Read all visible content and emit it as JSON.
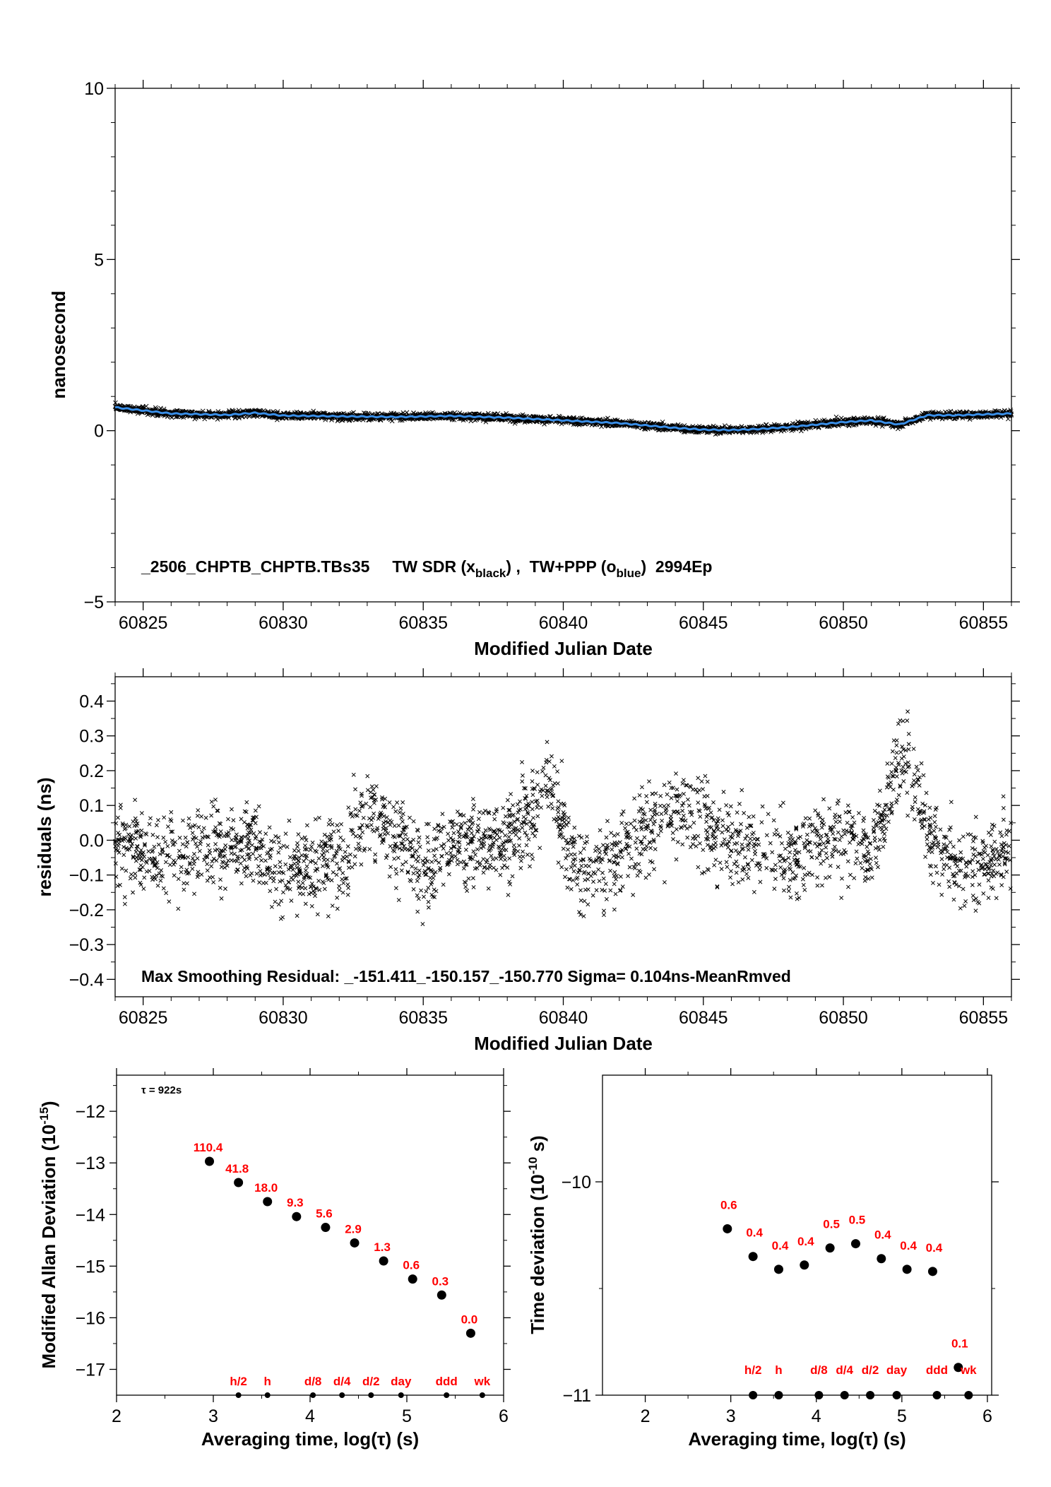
{
  "chart_data": [
    {
      "type": "scatter",
      "ylabel": "nanosecond",
      "xlabel": "Modified Julian Date",
      "xlim": [
        60824,
        60856
      ],
      "ylim": [
        -5,
        10
      ],
      "xticks": [
        "60825",
        "60830",
        "60835",
        "60840",
        "60845",
        "60850",
        "60855"
      ],
      "yticks": [
        "−5",
        "0",
        "5",
        "10"
      ],
      "annotation": {
        "prefix": "_2506_CHPTB_CHPTB.TBs35     TW SDR (x",
        "sub1": "black",
        "mid": ") ,  TW+PPP (o",
        "sub2": "blue",
        "suffix": ")  2994Ep"
      },
      "series": [
        {
          "marker": "x",
          "color": "#000000",
          "trend": [
            [
              60824,
              0.68
            ],
            [
              60826,
              0.5
            ],
            [
              60828,
              0.46
            ],
            [
              60829,
              0.52
            ],
            [
              60830,
              0.44
            ],
            [
              60832,
              0.42
            ],
            [
              60834,
              0.4
            ],
            [
              60836,
              0.43
            ],
            [
              60838,
              0.38
            ],
            [
              60840,
              0.3
            ],
            [
              60842,
              0.22
            ],
            [
              60844,
              0.08
            ],
            [
              60845,
              0.03
            ],
            [
              60846,
              0.02
            ],
            [
              60847,
              0.05
            ],
            [
              60848,
              0.1
            ],
            [
              60850,
              0.25
            ],
            [
              60851,
              0.3
            ],
            [
              60852,
              0.18
            ],
            [
              60853,
              0.45
            ],
            [
              60854,
              0.45
            ],
            [
              60856,
              0.5
            ]
          ]
        },
        {
          "marker": "line",
          "color": "#3a8ee6",
          "trend": [
            [
              60824,
              0.68
            ],
            [
              60826,
              0.5
            ],
            [
              60828,
              0.46
            ],
            [
              60829,
              0.52
            ],
            [
              60830,
              0.44
            ],
            [
              60832,
              0.42
            ],
            [
              60834,
              0.4
            ],
            [
              60836,
              0.43
            ],
            [
              60838,
              0.38
            ],
            [
              60840,
              0.3
            ],
            [
              60842,
              0.22
            ],
            [
              60844,
              0.08
            ],
            [
              60845,
              0.03
            ],
            [
              60846,
              0.02
            ],
            [
              60847,
              0.05
            ],
            [
              60848,
              0.1
            ],
            [
              60850,
              0.25
            ],
            [
              60851,
              0.3
            ],
            [
              60852,
              0.18
            ],
            [
              60853,
              0.45
            ],
            [
              60854,
              0.45
            ],
            [
              60856,
              0.5
            ]
          ]
        }
      ]
    },
    {
      "type": "scatter",
      "ylabel": "residuals (ns)",
      "xlabel": "Modified Julian Date",
      "xlim": [
        60824,
        60856
      ],
      "ylim": [
        -0.45,
        0.47
      ],
      "xticks": [
        "60825",
        "60830",
        "60835",
        "60840",
        "60845",
        "60850",
        "60855"
      ],
      "yticks": [
        "−0.4",
        "−0.3",
        "−0.2",
        "−0.1",
        "0.0",
        "0.1",
        "0.2",
        "0.3",
        "0.4"
      ],
      "annotation": "Max Smoothing Residual: _-151.411_-150.157_-150.770  Sigma= 0.104ns-MeanRmved",
      "residual_bias": [
        [
          60824,
          0.0
        ],
        [
          60826,
          -0.05
        ],
        [
          60827.5,
          0.0
        ],
        [
          60829,
          -0.02
        ],
        [
          60830,
          -0.1
        ],
        [
          60832,
          -0.05
        ],
        [
          60833,
          0.08
        ],
        [
          60835,
          -0.08
        ],
        [
          60836,
          -0.02
        ],
        [
          60838,
          0.0
        ],
        [
          60839.5,
          0.15
        ],
        [
          60840.5,
          -0.1
        ],
        [
          60842,
          -0.05
        ],
        [
          60844,
          0.1
        ],
        [
          60846,
          0.0
        ],
        [
          60848,
          -0.05
        ],
        [
          60849,
          0.0
        ],
        [
          60851,
          -0.02
        ],
        [
          60852.2,
          0.28
        ],
        [
          60853,
          0.02
        ],
        [
          60854.5,
          -0.1
        ],
        [
          60856,
          0.0
        ]
      ]
    },
    {
      "type": "scatter",
      "ylabel": "Modified Allan Deviation (10",
      "ylabel_sup": "-15",
      "ylabel_end": ")",
      "xlabel": "Averaging time, log(τ) (s)",
      "xlim": [
        2,
        6
      ],
      "ylim": [
        -17.5,
        -11.3
      ],
      "xticks": [
        "2",
        "3",
        "4",
        "5",
        "6"
      ],
      "yticks": [
        "−17",
        "−16",
        "−15",
        "−14",
        "−13",
        "−12"
      ],
      "tau_label": "τ = 922s",
      "points": [
        {
          "x": 2.96,
          "y": -12.97,
          "label": "110.4"
        },
        {
          "x": 3.26,
          "y": -13.38,
          "label": "41.8"
        },
        {
          "x": 3.56,
          "y": -13.75,
          "label": "18.0"
        },
        {
          "x": 3.86,
          "y": -14.04,
          "label": "9.3"
        },
        {
          "x": 4.16,
          "y": -14.25,
          "label": "5.6"
        },
        {
          "x": 4.46,
          "y": -14.55,
          "label": "2.9"
        },
        {
          "x": 4.76,
          "y": -14.9,
          "label": "1.3"
        },
        {
          "x": 5.06,
          "y": -15.25,
          "label": "0.6"
        },
        {
          "x": 5.36,
          "y": -15.56,
          "label": "0.3"
        },
        {
          "x": 5.66,
          "y": -16.3,
          "label": "0.0"
        }
      ],
      "markers": [
        {
          "x": 3.26,
          "label": "h/2"
        },
        {
          "x": 3.56,
          "label": "h"
        },
        {
          "x": 4.03,
          "label": "d/8"
        },
        {
          "x": 4.33,
          "label": "d/4"
        },
        {
          "x": 4.63,
          "label": "d/2"
        },
        {
          "x": 4.94,
          "label": "day"
        },
        {
          "x": 5.41,
          "label": "ddd"
        },
        {
          "x": 5.78,
          "label": "wk"
        }
      ]
    },
    {
      "type": "scatter",
      "ylabel": "Time deviation (10",
      "ylabel_sup": "-10",
      "ylabel_end": " s)",
      "xlabel": "Averaging time, log(τ) (s)",
      "xlim": [
        1.5,
        6.05
      ],
      "ylim": [
        -11,
        -9.5
      ],
      "xticks": [
        "2",
        "3",
        "4",
        "5",
        "6"
      ],
      "yticks": [
        "−11",
        "−10"
      ],
      "points": [
        {
          "x": 2.96,
          "y": -10.22,
          "label": "0.6"
        },
        {
          "x": 3.26,
          "y": -10.35,
          "label": "0.4"
        },
        {
          "x": 3.56,
          "y": -10.41,
          "label": "0.4"
        },
        {
          "x": 3.86,
          "y": -10.39,
          "label": "0.4"
        },
        {
          "x": 4.16,
          "y": -10.31,
          "label": "0.5"
        },
        {
          "x": 4.46,
          "y": -10.29,
          "label": "0.5"
        },
        {
          "x": 4.76,
          "y": -10.36,
          "label": "0.4"
        },
        {
          "x": 5.06,
          "y": -10.41,
          "label": "0.4"
        },
        {
          "x": 5.36,
          "y": -10.42,
          "label": "0.4"
        },
        {
          "x": 5.66,
          "y": -10.87,
          "label": "0.1"
        }
      ],
      "markers": [
        {
          "x": 3.26,
          "label": "h/2"
        },
        {
          "x": 3.56,
          "label": "h"
        },
        {
          "x": 4.03,
          "label": "d/8"
        },
        {
          "x": 4.33,
          "label": "d/4"
        },
        {
          "x": 4.63,
          "label": "d/2"
        },
        {
          "x": 4.94,
          "label": "day"
        },
        {
          "x": 5.41,
          "label": "ddd"
        },
        {
          "x": 5.78,
          "label": "wk"
        }
      ]
    }
  ]
}
